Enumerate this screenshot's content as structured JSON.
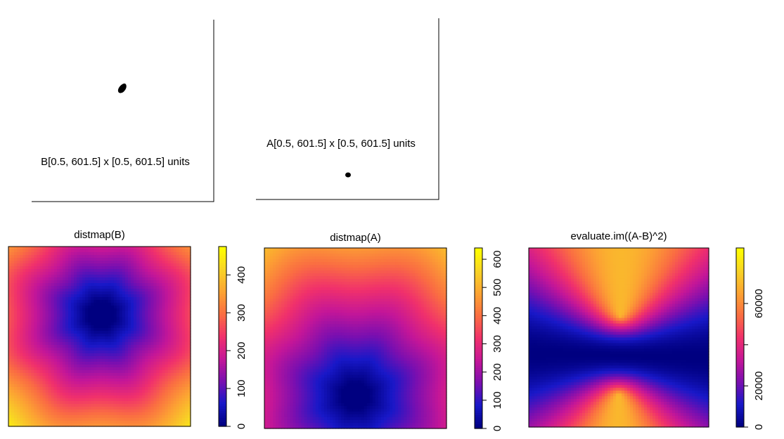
{
  "top_panels": [
    {
      "label": "B[0.5, 601.5] x [0.5, 601.5] units"
    },
    {
      "label": "A[0.5, 601.5] x [0.5, 601.5] units"
    }
  ],
  "chart_data": [
    {
      "type": "heatmap",
      "title": "distmap(B)",
      "colorbar_ticks": [
        0,
        100,
        200,
        300,
        400
      ],
      "colorbar_labels": [
        "0",
        "100",
        "200",
        "300",
        "400"
      ],
      "range": [
        0,
        475
      ],
      "shape": "distance_from_point",
      "center": [
        0.51,
        0.62
      ]
    },
    {
      "type": "heatmap",
      "title": "distmap(A)",
      "colorbar_ticks": [
        0,
        100,
        200,
        300,
        400,
        500,
        600
      ],
      "colorbar_labels": [
        "0",
        "100",
        "200",
        "300",
        "400",
        "500",
        "600"
      ],
      "range": [
        0,
        640
      ],
      "shape": "distance_from_point",
      "center": [
        0.5,
        0.18
      ]
    },
    {
      "type": "heatmap",
      "title": "evaluate.im((A-B)^2)",
      "colorbar_ticks": [
        0,
        20000,
        40000,
        60000
      ],
      "colorbar_labels": [
        "0",
        "20000",
        "",
        "60000"
      ],
      "range": [
        0,
        87000
      ],
      "shape": "squared_difference"
    }
  ],
  "colors": {
    "palette": [
      "#000080",
      "#1818c8",
      "#7a0fb0",
      "#c41698",
      "#f0306c",
      "#fa6d42",
      "#fca233",
      "#f8d226",
      "#ffff00"
    ]
  }
}
